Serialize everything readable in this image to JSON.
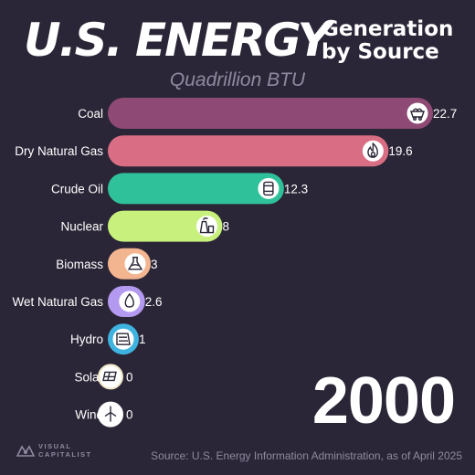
{
  "header": {
    "title_main": "U.S. ENERGY",
    "title_side_line1": "Generation",
    "title_side_line2": "by Source",
    "units": "Quadrillion BTU"
  },
  "year": "2000",
  "source": "Source: U.S. Energy Information Administration, as of April 2025",
  "logo": {
    "line1": "VISUAL",
    "line2": "CAPITALIST"
  },
  "chart_data": {
    "type": "bar",
    "orientation": "horizontal",
    "title": "U.S. ENERGY Generation by Source",
    "subtitle": "Quadrillion BTU",
    "period": "2000",
    "categories": [
      "Coal",
      "Dry Natural Gas",
      "Crude Oil",
      "Nuclear",
      "Biomass",
      "Wet Natural Gas",
      "Hydro",
      "Solar",
      "Wind"
    ],
    "values": [
      22.7,
      19.6,
      12.3,
      8,
      3,
      2.6,
      1,
      0,
      0
    ],
    "value_labels": [
      "22.7",
      "19.6",
      "12.3",
      "8",
      "3",
      "2.6",
      "1",
      "0",
      "0"
    ],
    "colors": [
      "#8e4a74",
      "#d96d83",
      "#2fc29a",
      "#c8f07c",
      "#f2b590",
      "#b39af0",
      "#3fb3e0",
      "#f0e6c8",
      "#ffffff"
    ],
    "icons": [
      "coal-cart-icon",
      "flame-icon",
      "oil-barrel-icon",
      "nuclear-plant-icon",
      "biomass-flask-icon",
      "droplet-icon",
      "dam-icon",
      "solar-panel-icon",
      "wind-turbine-icon"
    ],
    "grid": false,
    "legend": "none"
  }
}
